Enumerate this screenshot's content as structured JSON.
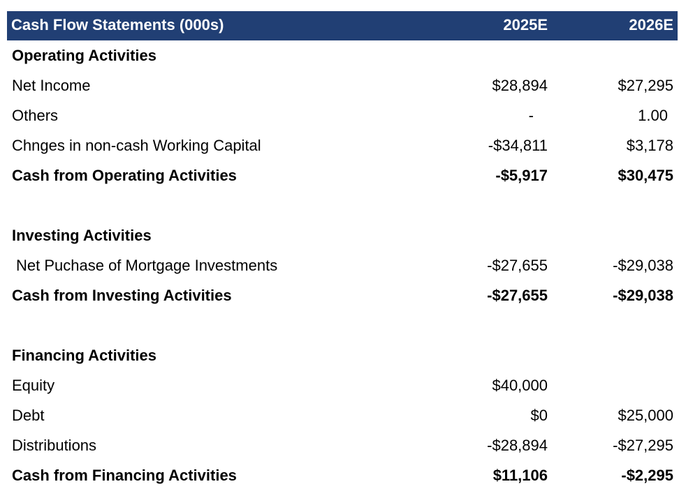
{
  "header": {
    "title": "Cash Flow Statements (000s)",
    "year1": "2025E",
    "year2": "2026E"
  },
  "operating": {
    "heading": "Operating Activities",
    "rows": [
      {
        "label": "Net Income",
        "v1": "$28,894",
        "v2": "$27,295"
      },
      {
        "label": "Others",
        "v1": "-",
        "v2": "1.00"
      },
      {
        "label": "Chnges in non-cash Working Capital",
        "v1": "-$34,811",
        "v2": "$3,178"
      }
    ],
    "total": {
      "label": "Cash from Operating Activities",
      "v1": "-$5,917",
      "v2": "$30,475"
    }
  },
  "investing": {
    "heading": "Investing Activities",
    "rows": [
      {
        "label": "Net Puchase of Mortgage Investments",
        "v1": "-$27,655",
        "v2": "-$29,038"
      }
    ],
    "total": {
      "label": "Cash from Investing Activities",
      "v1": "-$27,655",
      "v2": "-$29,038"
    }
  },
  "financing": {
    "heading": "Financing Activities",
    "rows": [
      {
        "label": "Equity",
        "v1": "$40,000",
        "v2": ""
      },
      {
        "label": "Debt",
        "v1": "$0",
        "v2": "$25,000"
      },
      {
        "label": "Distributions",
        "v1": "-$28,894",
        "v2": "-$27,295"
      }
    ],
    "total": {
      "label": "Cash from Financing Activities",
      "v1": "$11,106",
      "v2": "-$2,295"
    }
  },
  "colors": {
    "header_bg": "#213f74",
    "header_text": "#ffffff"
  }
}
